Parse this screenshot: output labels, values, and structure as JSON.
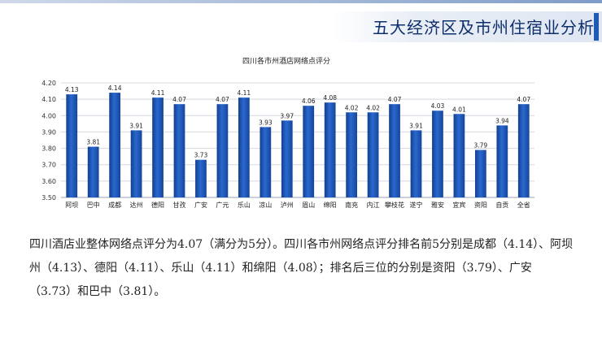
{
  "header": {
    "title": "五大经济区及市州住宿业分析"
  },
  "chart_data": {
    "type": "bar",
    "title": "四川各市州酒店网络点评分",
    "categories": [
      "阿坝",
      "巴中",
      "成都",
      "达州",
      "德阳",
      "甘孜",
      "广安",
      "广元",
      "乐山",
      "凉山",
      "泸州",
      "眉山",
      "绵阳",
      "南充",
      "内江",
      "攀枝花",
      "遂宁",
      "雅安",
      "宜宾",
      "资阳",
      "自贡",
      "全省"
    ],
    "values": [
      4.13,
      3.81,
      4.14,
      3.91,
      4.11,
      4.07,
      3.73,
      4.07,
      4.11,
      3.93,
      3.97,
      4.06,
      4.08,
      4.02,
      4.02,
      4.07,
      3.91,
      4.03,
      4.01,
      3.79,
      3.94,
      4.07
    ],
    "value_labels": [
      "4.13",
      "3.81",
      "4.14",
      "3.91",
      "4.11",
      "4.07",
      "3.73",
      "4.07",
      "4.11",
      "3.93",
      "3.97",
      "4.06",
      "4.08",
      "4.02",
      "4.02",
      "4.07",
      "3.91",
      "4.03",
      "4.01",
      "3.79",
      "3.94",
      "4.07"
    ],
    "ylim": [
      3.5,
      4.2
    ],
    "yticks": [
      "3.50",
      "3.60",
      "3.70",
      "3.80",
      "3.90",
      "4.00",
      "4.10",
      "4.20"
    ],
    "grid": true,
    "bar_color": "#1f57b8",
    "xlabel": "",
    "ylabel": ""
  },
  "caption": {
    "text": "四川酒店业整体网络点评分为4.07（满分为5分）。四川各市州网络点评分排名前5分别是成都（4.14）、阿坝州（4.13）、德阳（4.11）、乐山（4.11）和绵阳（4.08）；排名后三位的分别是资阳（3.79）、广安（3.73）和巴中（3.81）。"
  }
}
